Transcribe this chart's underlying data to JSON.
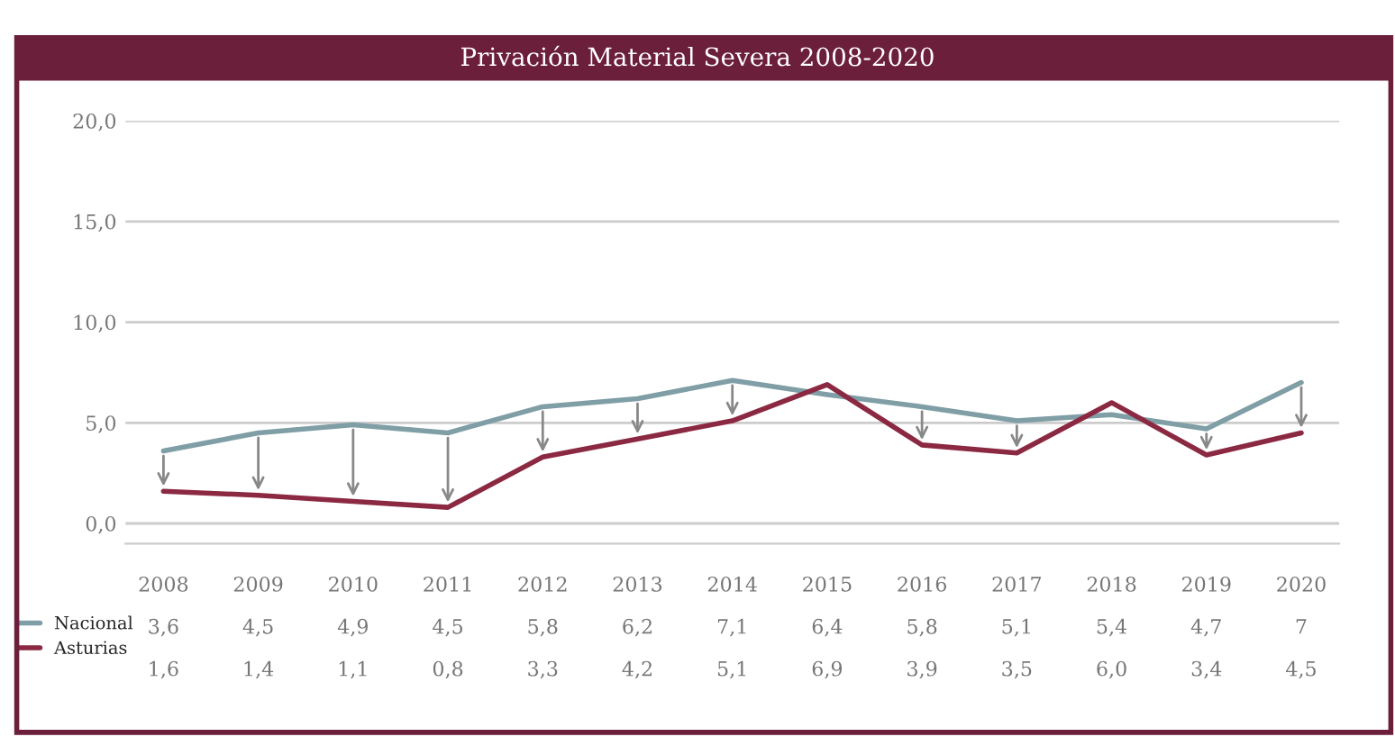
{
  "chart_data": {
    "type": "line",
    "title": "Privación Material Severa 2008-2020",
    "categories": [
      "2008",
      "2009",
      "2010",
      "2011",
      "2012",
      "2013",
      "2014",
      "2015",
      "2016",
      "2017",
      "2018",
      "2019",
      "2020"
    ],
    "series": [
      {
        "name": "Nacional",
        "color": "#7f9ea6",
        "values": [
          3.6,
          4.5,
          4.9,
          4.5,
          5.8,
          6.2,
          7.1,
          6.4,
          5.8,
          5.1,
          5.4,
          4.7,
          7
        ],
        "value_labels": [
          "3,6",
          "4,5",
          "4,9",
          "4,5",
          "5,8",
          "6,2",
          "7,1",
          "6,4",
          "5,8",
          "5,1",
          "5,4",
          "4,7",
          "7"
        ]
      },
      {
        "name": "Asturias",
        "color": "#8b2942",
        "values": [
          1.6,
          1.4,
          1.1,
          0.8,
          3.3,
          4.2,
          5.1,
          6.9,
          3.9,
          3.5,
          6.0,
          3.4,
          4.5
        ],
        "value_labels": [
          "1,6",
          "1,4",
          "1,1",
          "0,8",
          "3,3",
          "4,2",
          "5,1",
          "6,9",
          "3,9",
          "3,5",
          "6,0",
          "3,4",
          "4,5"
        ]
      }
    ],
    "ylim": [
      -1,
      20
    ],
    "yticks": [
      {
        "value": 0,
        "label": "0,0"
      },
      {
        "value": 5,
        "label": "5,0"
      },
      {
        "value": 10,
        "label": "10,0"
      },
      {
        "value": 15,
        "label": "15,0"
      },
      {
        "value": 20,
        "label": "20,0"
      }
    ],
    "grid": "y",
    "legend": "bottom left",
    "marker": "none",
    "line_style": "solid"
  }
}
